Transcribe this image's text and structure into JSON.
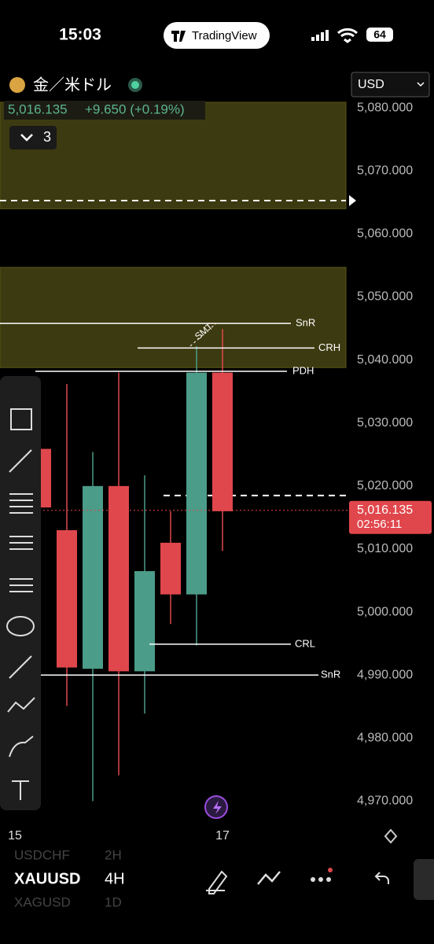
{
  "status_bar": {
    "time": "15:03",
    "app": "TradingView",
    "battery": "64"
  },
  "header": {
    "symbol_name": "金／米ドル",
    "price": "5,016.135",
    "change": "+9.650 (+0.19%)",
    "collapsed_count": "3",
    "currency": "USD"
  },
  "bottom_bar": {
    "symbol": "XAUUSD",
    "interval": "4H",
    "prev_symbol": "USDCHF",
    "prev_interval": "2H",
    "next_symbol": "XAGUSD",
    "next_interval": "1D"
  },
  "chart_data": {
    "type": "candlestick",
    "series": [
      {
        "name": "XAUUSD",
        "up_color": "#4b9c88",
        "down_color": "#e0474c",
        "open": [
          5025.9,
          5013.0,
          4991.0,
          5020.0,
          4990.6,
          5011.0,
          5002.8,
          5038.0
        ],
        "high": [
          5025.9,
          5036.2,
          5025.4,
          5038.0,
          5021.7,
          5016.0,
          5042.2,
          5044.9
        ],
        "low": [
          5016.6,
          4985.1,
          4970.0,
          4974.1,
          4983.9,
          4998.1,
          4994.7,
          5009.7
        ],
        "close": [
          5016.6,
          4991.2,
          5020.0,
          4990.6,
          5006.5,
          5002.8,
          5038.0,
          5016.0
        ]
      }
    ],
    "xticks": [
      {
        "value": -1,
        "label": "15"
      },
      {
        "value": 7,
        "label": "17"
      }
    ],
    "ylim": [
      4967.3,
      5080.9
    ],
    "yticks": [
      {
        "value": 5080,
        "label": "5,080.000"
      },
      {
        "value": 5070,
        "label": "5,070.000"
      },
      {
        "value": 5060,
        "label": "5,060.000"
      },
      {
        "value": 5050,
        "label": "5,050.000"
      },
      {
        "value": 5040,
        "label": "5,040.000"
      },
      {
        "value": 5030,
        "label": "5,030.000"
      },
      {
        "value": 5020,
        "label": "5,020.000"
      },
      {
        "value": 5010,
        "label": "5,010.000"
      },
      {
        "value": 5000,
        "label": "5,000.000"
      },
      {
        "value": 4990,
        "label": "4,990.000"
      },
      {
        "value": 4980,
        "label": "4,980.000"
      },
      {
        "value": 4970,
        "label": "4,970.000"
      }
    ],
    "zones": [
      {
        "low": 5064.0,
        "high": 5080.9
      },
      {
        "low": 5038.8,
        "high": 5054.7
      }
    ],
    "levels": [
      {
        "label": "SnR",
        "value": 5045.8
      },
      {
        "label": "CRH",
        "value": 5041.9
      },
      {
        "label": "PDH",
        "value": 5038.2
      },
      {
        "label": "CRL",
        "value": 4994.9
      },
      {
        "label": "SnR",
        "value": 4990.0
      }
    ],
    "dashed_levels": [
      5065.3,
      5018.5
    ],
    "annotation": "SMT",
    "current_price": {
      "value": 5016.135,
      "label": "5,016.135"
    },
    "countdown": "02:56:11"
  }
}
